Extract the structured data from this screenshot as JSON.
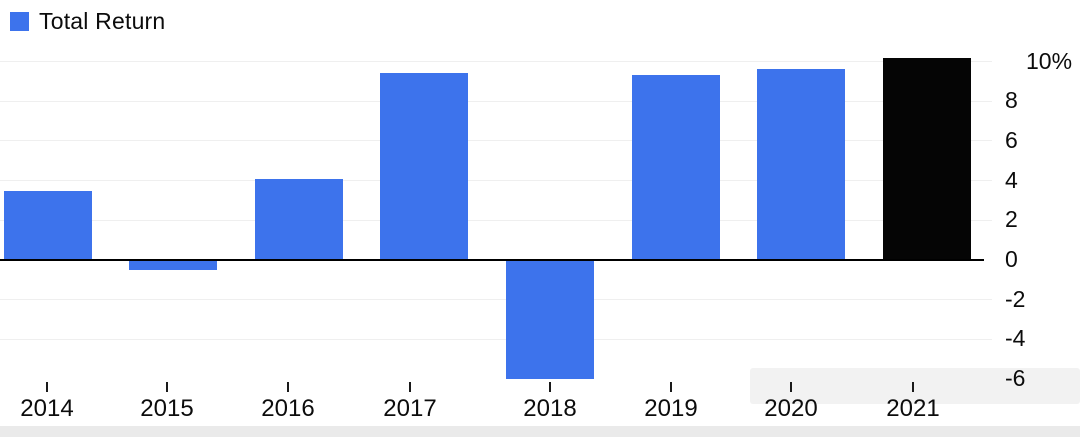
{
  "legend": {
    "label": "Total Return"
  },
  "colors": {
    "bar_blue": "#3D73EC",
    "bar_black": "#050505",
    "grid": "#EFEFEF",
    "axis": "#000000",
    "text": "#0C0C0C"
  },
  "chart_data": {
    "type": "bar",
    "title": "Total Return",
    "legend": [
      "Total Return"
    ],
    "legend_position": "top-left",
    "categories": [
      "2014",
      "2015",
      "2016",
      "2017",
      "2018",
      "2019",
      "2020",
      "2021"
    ],
    "values": [
      3.5,
      -0.5,
      4.1,
      9.4,
      -6.0,
      9.3,
      9.6,
      10.2
    ],
    "bar_colors": [
      "#3D73EC",
      "#3D73EC",
      "#3D73EC",
      "#3D73EC",
      "#3D73EC",
      "#3D73EC",
      "#3D73EC",
      "#050505"
    ],
    "unit": "%",
    "xlabel": "",
    "ylabel": "",
    "ylim": [
      -6,
      10.5
    ],
    "grid": true,
    "axis_labels_side": "right",
    "yticks": [
      {
        "label": "10%",
        "v": 10
      },
      {
        "label": "8",
        "v": 8
      },
      {
        "label": "6",
        "v": 6
      },
      {
        "label": "4",
        "v": 4
      },
      {
        "label": "2",
        "v": 2
      },
      {
        "label": "0",
        "v": 0
      },
      {
        "label": "-2",
        "v": -2
      },
      {
        "label": "-4",
        "v": -4
      },
      {
        "label": "-6",
        "v": -6
      }
    ]
  }
}
